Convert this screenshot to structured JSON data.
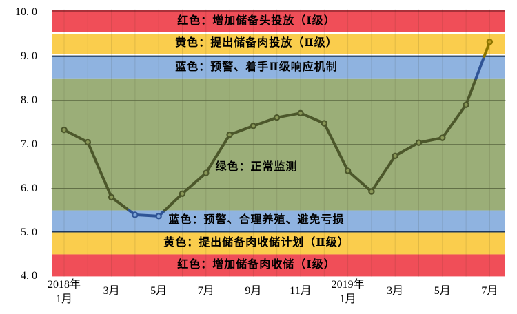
{
  "colors": {
    "band_red": "#F04E58",
    "band_yellow": "#FACD4D",
    "band_blue": "#8FB3E0",
    "band_green": "#9BAE78",
    "plot_top_border": "#A8323A",
    "threshold_navy": "#1F3A60",
    "gap_white": "#FFFFFF",
    "line_green_zone": "#4C572B",
    "line_blue_zone": "#2F5496",
    "line_yellow_zone": "#8C7500",
    "marker_fill_green_zone": "#8A9858",
    "marker_fill_blue_zone": "#7FA6D9",
    "marker_fill_yellow_zone": "#C09D22",
    "h_gridline": "#5A6740",
    "v_gridline": "rgba(40,45,20,0.12)",
    "label_text": "#000000",
    "background": "#FFFFFF"
  },
  "chart_data": {
    "type": "line",
    "title": "",
    "xlabel": "",
    "ylabel": "",
    "ylim": [
      4.0,
      10.0
    ],
    "x": [
      "2018-01",
      "2018-02",
      "2018-03",
      "2018-04",
      "2018-05",
      "2018-06",
      "2018-07",
      "2018-08",
      "2018-09",
      "2018-10",
      "2018-11",
      "2018-12",
      "2019-01",
      "2019-02",
      "2019-03",
      "2019-04",
      "2019-05",
      "2019-06",
      "2019-07"
    ],
    "values": [
      7.33,
      7.05,
      5.8,
      5.4,
      5.37,
      5.88,
      6.35,
      7.22,
      7.42,
      7.61,
      7.71,
      7.48,
      6.4,
      5.93,
      6.74,
      7.04,
      7.15,
      7.9,
      9.33
    ],
    "y_tick_values": [
      10,
      9,
      8,
      7,
      6,
      5,
      4
    ],
    "y_tick_labels": [
      "10. 0",
      "9. 0",
      "8. 0",
      "7. 0",
      "6. 0",
      "5. 0",
      "4. 0"
    ],
    "x_tick_labels": [
      {
        "index": 0,
        "line1": "2018年",
        "line2": "1月"
      },
      {
        "index": 2,
        "line1": "3月",
        "line2": ""
      },
      {
        "index": 4,
        "line1": "5月",
        "line2": ""
      },
      {
        "index": 6,
        "line1": "7月",
        "line2": ""
      },
      {
        "index": 8,
        "line1": "9月",
        "line2": ""
      },
      {
        "index": 10,
        "line1": "11月",
        "line2": ""
      },
      {
        "index": 12,
        "line1": "2019年",
        "line2": "1月"
      },
      {
        "index": 14,
        "line1": "3月",
        "line2": ""
      },
      {
        "index": 16,
        "line1": "5月",
        "line2": ""
      },
      {
        "index": 18,
        "line1": "7月",
        "line2": ""
      }
    ],
    "h_gridline_values": [
      8,
      7,
      6
    ],
    "zone_thresholds": [
      4.0,
      4.5,
      5.0,
      5.5,
      8.5,
      9.0,
      9.5,
      10.0
    ],
    "zones": [
      {
        "range": [
          9.5,
          10.0
        ],
        "color": "red",
        "label": "红色：增加储备头投放（Ⅰ级）"
      },
      {
        "range": [
          9.0,
          9.5
        ],
        "color": "yellow",
        "label": "黄色：提出储备肉投放（Ⅱ级）"
      },
      {
        "range": [
          8.5,
          9.0
        ],
        "color": "blue",
        "label": "蓝色：预警、着手Ⅱ级响应机制"
      },
      {
        "range": [
          5.5,
          8.5
        ],
        "color": "green",
        "label": "绿色：正常监测"
      },
      {
        "range": [
          5.0,
          5.5
        ],
        "color": "blue",
        "label": "蓝色：预警、合理养殖、避免亏损"
      },
      {
        "range": [
          4.5,
          5.0
        ],
        "color": "yellow",
        "label": "黄色：提出储备肉收储计划（Ⅱ级）"
      },
      {
        "range": [
          4.0,
          4.5
        ],
        "color": "red",
        "label": "红色：增加储备肉收储（Ⅰ级）"
      }
    ],
    "legend": {
      "visible": false
    }
  }
}
